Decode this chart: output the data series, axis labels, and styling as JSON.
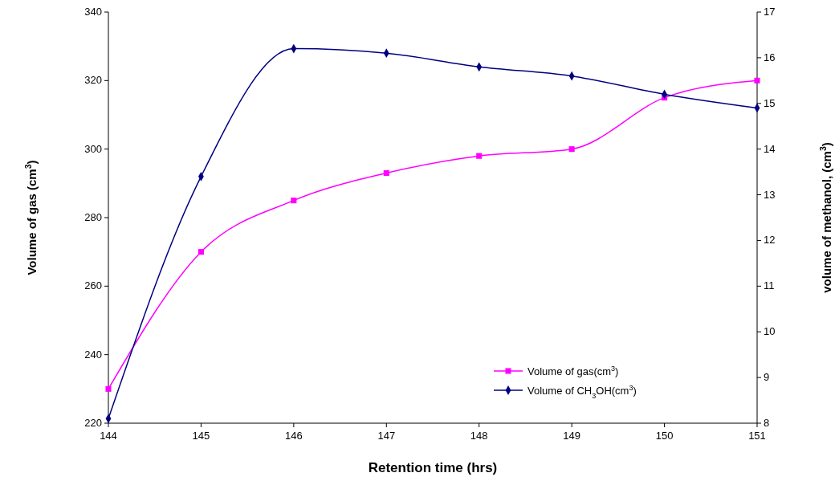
{
  "chart_data": {
    "type": "line",
    "xlabel": "Retention time (hrs)",
    "ylabel": "Volume of gas (cm$^{3}$)",
    "y2label": "volume of methanol, (cm$^{3}$)",
    "x": [
      144,
      145,
      146,
      147,
      148,
      149,
      150,
      151
    ],
    "xlim": [
      144,
      151
    ],
    "xticks": [
      144,
      145,
      146,
      147,
      148,
      149,
      150,
      151
    ],
    "ylim": [
      220,
      340
    ],
    "yticks": [
      220,
      240,
      260,
      280,
      300,
      320,
      340
    ],
    "y2lim": [
      8,
      17
    ],
    "y2ticks": [
      8,
      9,
      10,
      11,
      12,
      13,
      14,
      15,
      16,
      17
    ],
    "grid": false,
    "legend": "bottom right",
    "series": [
      {
        "name": "Volume of gas(cm$^{3}$)",
        "color": "#ff00ff",
        "marker": "square",
        "values": [
          230,
          270,
          285,
          293,
          298,
          300,
          315,
          320
        ]
      },
      {
        "name": "Volume of CH$_{3}$OH(cm$^{3}$)",
        "color": "#000080",
        "marker": "diamond",
        "axis": "y2",
        "values": [
          8.1,
          13.4,
          16.2,
          16.1,
          15.8,
          15.6,
          15.2,
          14.9
        ]
      }
    ]
  }
}
